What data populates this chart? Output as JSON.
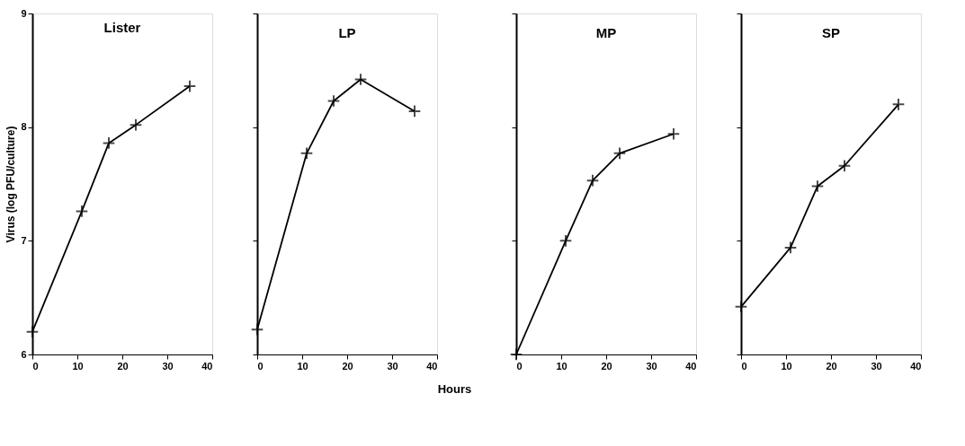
{
  "chart_data": [
    {
      "type": "line",
      "title": "Lister",
      "ylabel": "Virus (log PFU/culture)",
      "x": [
        0,
        11,
        17,
        23,
        35
      ],
      "series": [
        {
          "color": "#000000",
          "values": [
            6.2,
            7.26,
            7.86,
            8.02,
            8.36
          ]
        }
      ],
      "xlim": [
        0,
        40
      ],
      "xticks": [
        0,
        10,
        20,
        30,
        40
      ],
      "ylim": [
        6,
        9
      ],
      "yticks": [
        6,
        7,
        8,
        9
      ],
      "grid": false,
      "marker": "cross",
      "line_style": "solid"
    },
    {
      "type": "line",
      "title": "LP",
      "xlabel": "Hours",
      "x": [
        0,
        11,
        17,
        23,
        35
      ],
      "series": [
        {
          "color": "#000000",
          "values": [
            6.22,
            7.77,
            8.23,
            8.42,
            8.14
          ]
        }
      ],
      "xlim": [
        0,
        40
      ],
      "xticks": [
        0,
        10,
        20,
        30,
        40
      ],
      "ylim": [
        6,
        9
      ],
      "yticks": [
        6,
        7,
        8,
        9
      ],
      "grid": false,
      "marker": "cross",
      "line_style": "solid",
      "tick_labels": "x"
    },
    {
      "type": "line",
      "title": "MP",
      "x": [
        0,
        11,
        17,
        23,
        35
      ],
      "series": [
        {
          "color": "#000000",
          "values": [
            6.0,
            7.0,
            7.53,
            7.77,
            7.94
          ]
        }
      ],
      "xlim": [
        0,
        40
      ],
      "xticks": [
        0,
        10,
        20,
        30,
        40
      ],
      "ylim": [
        6,
        9
      ],
      "yticks": [
        6,
        7,
        8,
        9
      ],
      "grid": false,
      "marker": "cross",
      "line_style": "solid",
      "tick_labels": "x"
    },
    {
      "type": "line",
      "title": "SP",
      "x": [
        0,
        11,
        17,
        23,
        35
      ],
      "series": [
        {
          "color": "#000000",
          "values": [
            6.42,
            6.94,
            7.48,
            7.66,
            8.2
          ]
        }
      ],
      "xlim": [
        0,
        40
      ],
      "xticks": [
        0,
        10,
        20,
        30,
        40
      ],
      "ylim": [
        6,
        9
      ],
      "yticks": [
        6,
        7,
        8,
        9
      ],
      "grid": false,
      "marker": "cross",
      "line_style": "solid",
      "tick_labels": "x"
    }
  ]
}
